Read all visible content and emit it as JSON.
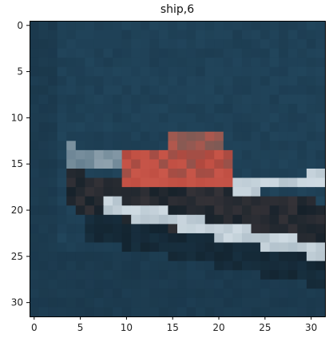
{
  "figure": {
    "title": "ship,6",
    "x_ticks": [
      "0",
      "5",
      "10",
      "15",
      "20",
      "25",
      "30"
    ],
    "y_ticks": [
      "0",
      "5",
      "10",
      "15",
      "20",
      "25",
      "30"
    ]
  },
  "image": {
    "grid_size": 32,
    "palette": {
      "sea_dark": "#162f40",
      "sea_mid": "#1d3d52",
      "sea_light": "#244a61",
      "hull_dark": "#15212a",
      "hull_white": "#cfdbe3",
      "hull_grey": "#8fa2ae",
      "deck_red": "#b8473c",
      "deck_orange": "#c9574a",
      "cabin_brown": "#7e5a55",
      "shadow": "#0f1a22"
    },
    "objects": [
      "ship"
    ]
  }
}
